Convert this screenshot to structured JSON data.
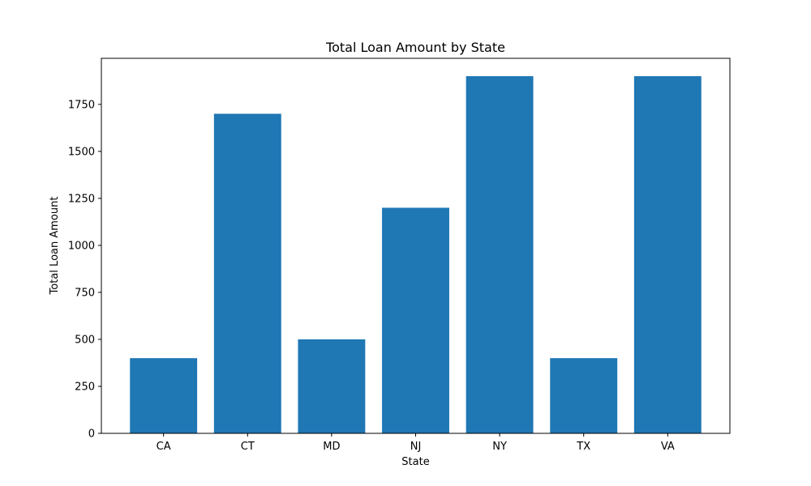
{
  "chart_data": {
    "type": "bar",
    "title": "Total Loan Amount by State",
    "xlabel": "State",
    "ylabel": "Total Loan Amount",
    "categories": [
      "CA",
      "CT",
      "MD",
      "NJ",
      "NY",
      "TX",
      "VA"
    ],
    "values": [
      400,
      1700,
      500,
      1200,
      1900,
      400,
      1900
    ],
    "ylim": [
      0,
      1995
    ],
    "yticks": [
      0,
      250,
      500,
      750,
      1000,
      1250,
      1500,
      1750
    ],
    "bar_color": "#1f77b4",
    "grid": false,
    "legend": "none"
  }
}
